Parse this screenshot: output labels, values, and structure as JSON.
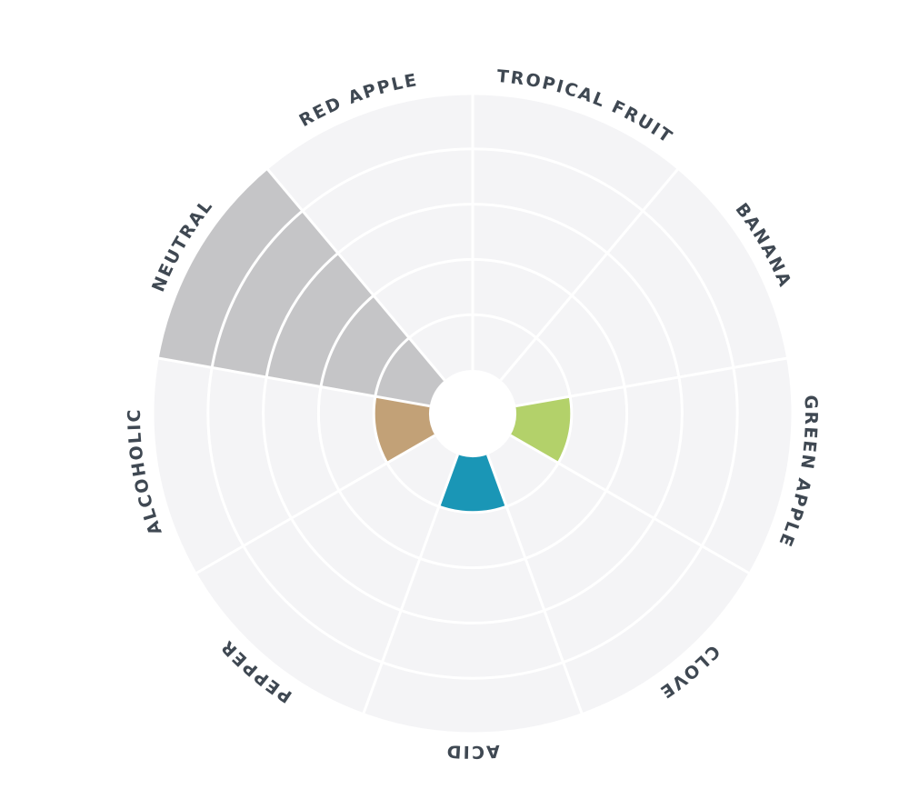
{
  "chart_data": {
    "type": "polar-area",
    "categories": [
      "TROPICAL FRUIT",
      "BANANA",
      "GREEN APPLE",
      "CLOVE",
      "ACID",
      "PEPPER",
      "ALCOHOLIC",
      "NEUTRAL",
      "RED APPLE"
    ],
    "values": [
      0,
      0,
      1,
      0,
      1,
      0,
      1,
      5,
      0
    ],
    "rlim": [
      0,
      5
    ],
    "grid": true,
    "colors": {
      "NEUTRAL": "#c5c5c7",
      "GREEN APPLE": "#b3d16a",
      "ACID": "#1a96b6",
      "ALCOHOLIC": "#c2a177",
      "background": "#f4f4f6",
      "gridline": "#ffffff"
    }
  }
}
